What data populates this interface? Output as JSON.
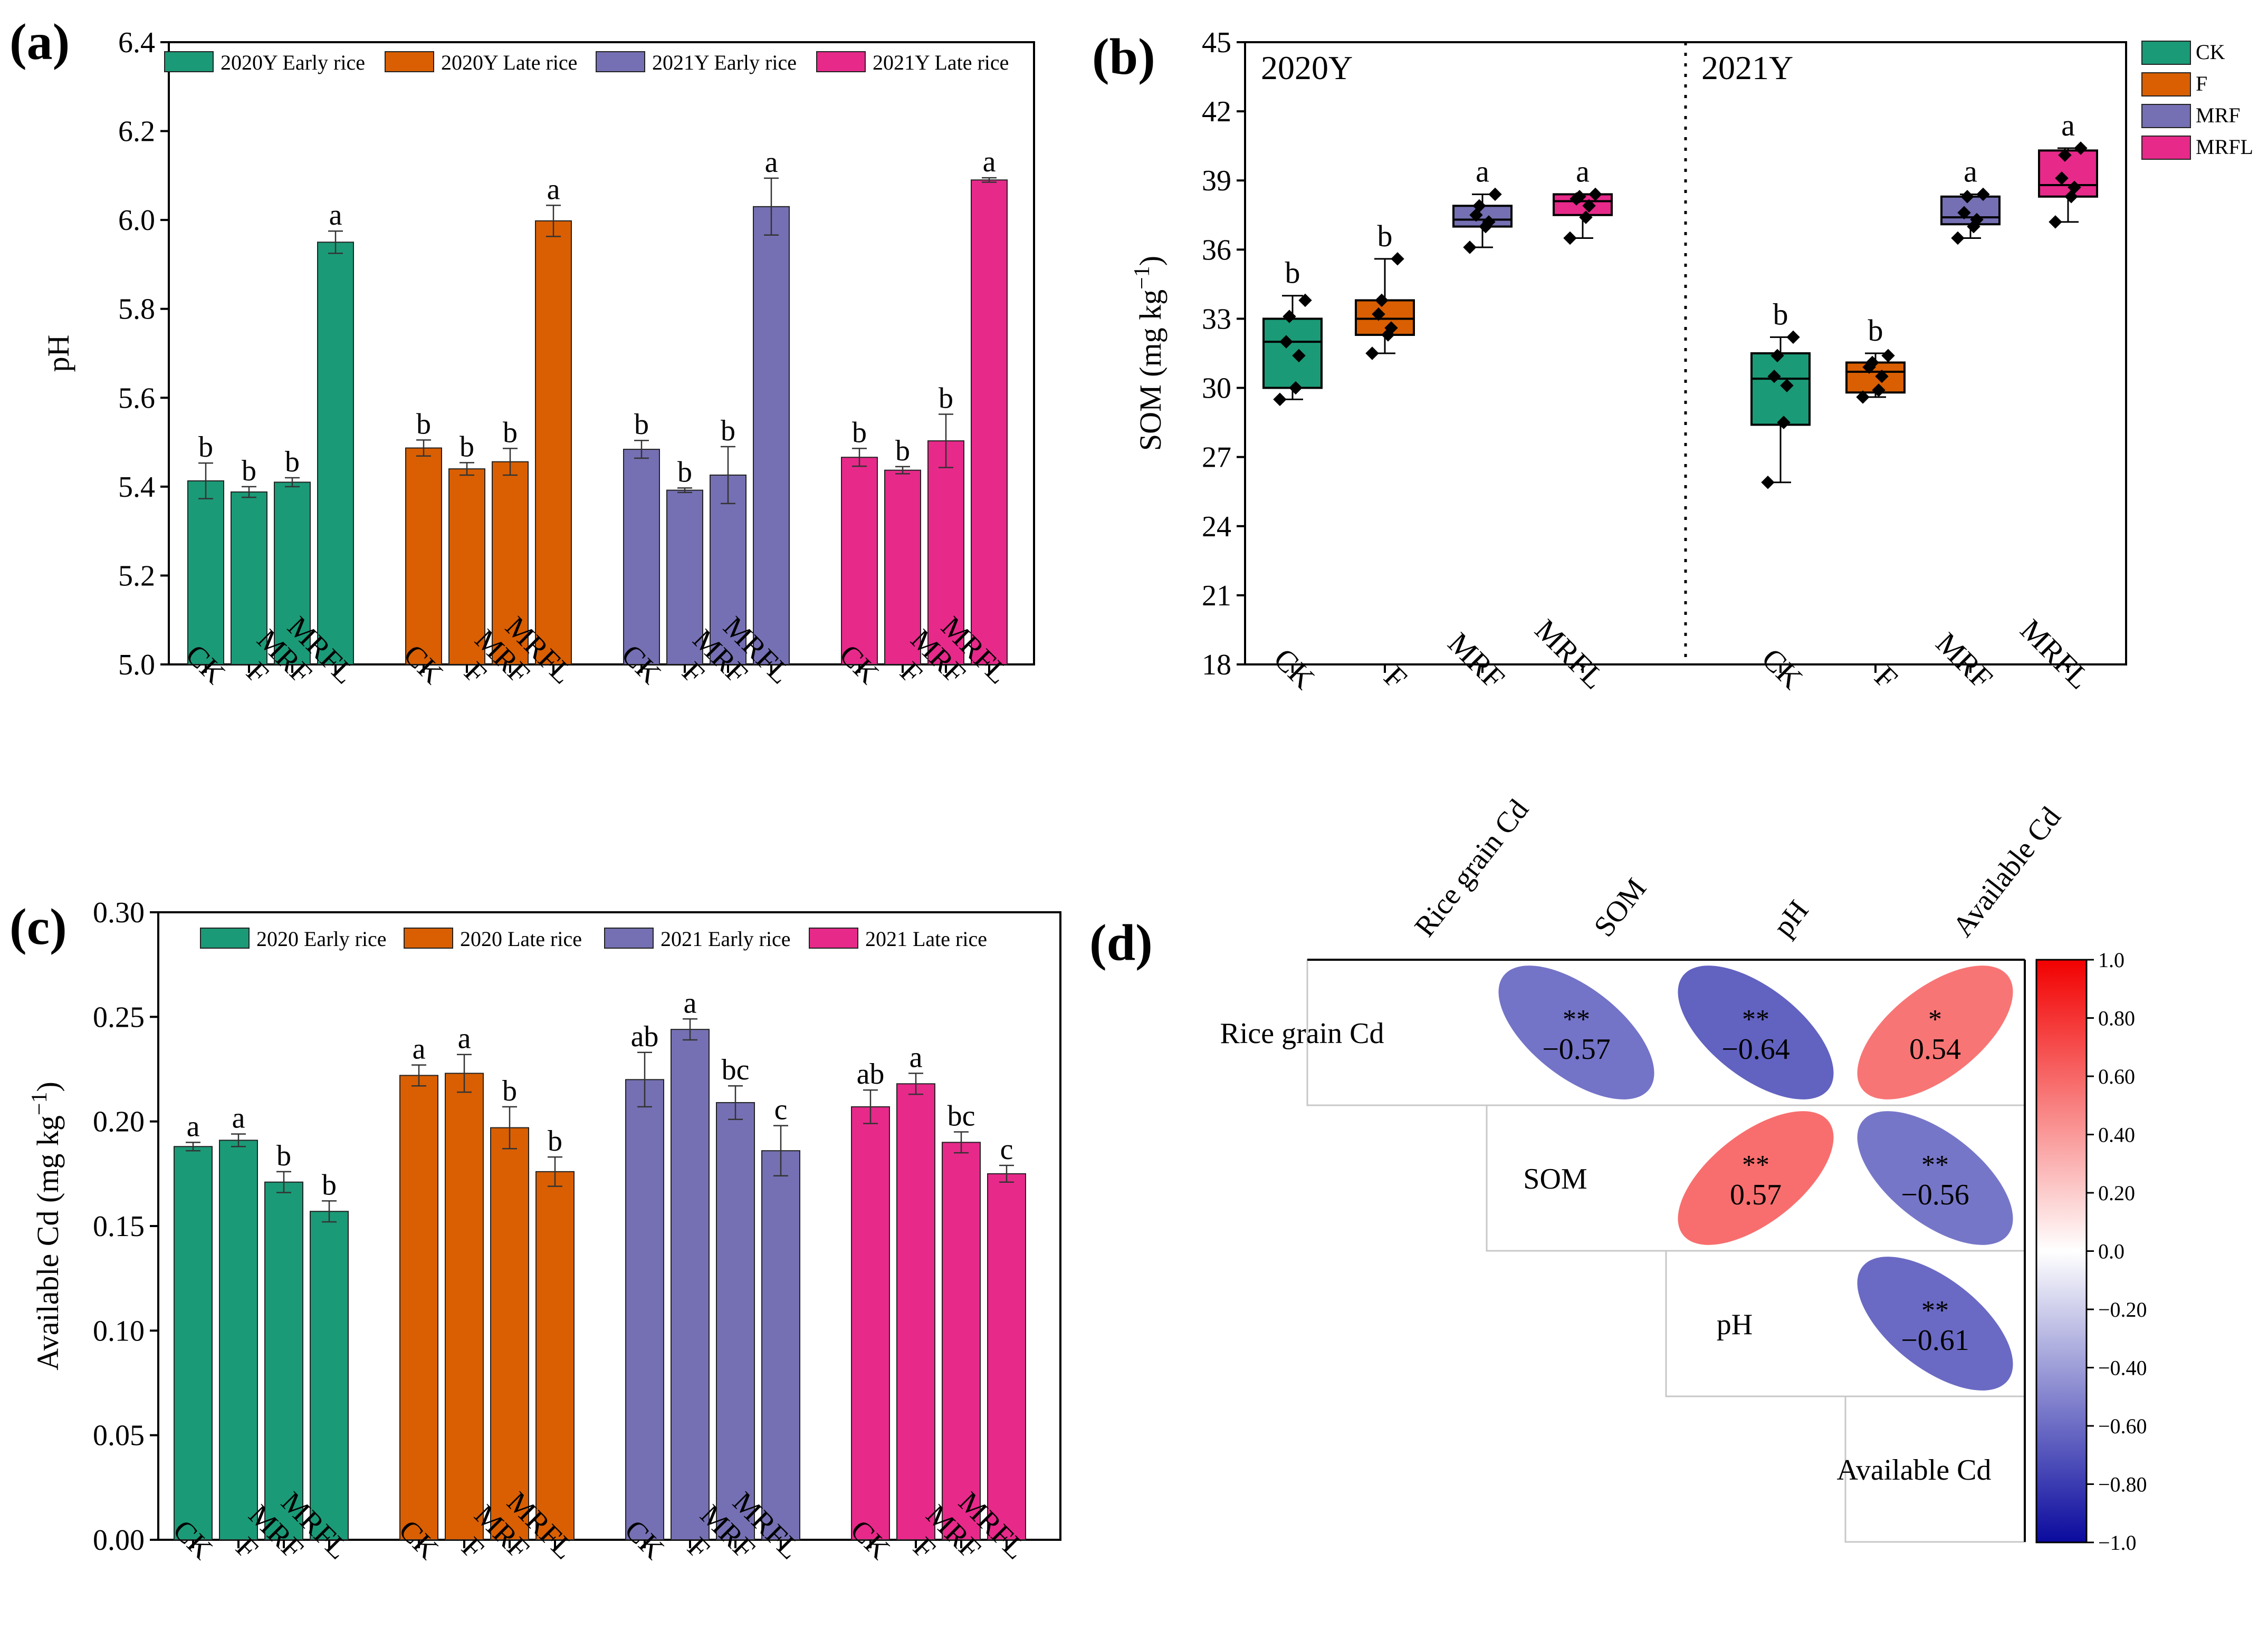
{
  "colors": {
    "CK": "#1b9a77",
    "F": "#d95f02",
    "MRF": "#7570b3",
    "MRFL": "#e7298a",
    "neg": "#0a0a9e",
    "pos": "#f20000"
  },
  "chart_data": [
    {
      "panel": "(a)",
      "type": "bar",
      "ylabel": "pH",
      "ylim": [
        5.0,
        6.4
      ],
      "yticks": [
        "5.0",
        "5.2",
        "5.4",
        "5.6",
        "5.8",
        "6.0",
        "6.2",
        "6.4"
      ],
      "categories": [
        "CK",
        "F",
        "MRF",
        "MRFL"
      ],
      "series": [
        {
          "name": "2020Y Early rice",
          "color_key": "CK",
          "values": [
            5.413,
            5.388,
            5.41,
            5.95
          ],
          "errors": [
            0.04,
            0.012,
            0.01,
            0.025
          ],
          "letters": [
            "b",
            "b",
            "b",
            "a"
          ]
        },
        {
          "name": "2020Y Late rice",
          "color_key": "F",
          "values": [
            5.487,
            5.44,
            5.456,
            5.998
          ],
          "errors": [
            0.018,
            0.014,
            0.03,
            0.035
          ],
          "letters": [
            "b",
            "b",
            "b",
            "a"
          ]
        },
        {
          "name": "2021Y Early rice",
          "color_key": "MRF",
          "values": [
            5.484,
            5.392,
            5.426,
            6.03
          ],
          "errors": [
            0.02,
            0.005,
            0.064,
            0.064
          ],
          "letters": [
            "b",
            "b",
            "b",
            "a"
          ]
        },
        {
          "name": "2021Y Late rice",
          "color_key": "MRFL",
          "values": [
            5.466,
            5.437,
            5.503,
            6.09
          ],
          "errors": [
            0.02,
            0.008,
            0.06,
            0.005
          ],
          "letters": [
            "b",
            "b",
            "b",
            "a"
          ]
        }
      ]
    },
    {
      "panel": "(b)",
      "type": "box",
      "ylabel": "SOM (mg kg",
      "ylabel_sup": "−1",
      "ylabel_tail": ")",
      "ylim": [
        18,
        45
      ],
      "yticks": [
        "18",
        "21",
        "24",
        "27",
        "30",
        "33",
        "36",
        "39",
        "42",
        "45"
      ],
      "periods": [
        "2020Y",
        "2021Y"
      ],
      "categories": [
        "CK",
        "F",
        "MRF",
        "MRFL"
      ],
      "legend": [
        "CK",
        "F",
        "MRF",
        "MRFL"
      ],
      "groups": [
        {
          "period": "2020Y",
          "treatment": "CK",
          "min": 29.5,
          "q1": 30.0,
          "median": 32.0,
          "q3": 33.0,
          "max": 34.0,
          "points": [
            29.5,
            30.0,
            31.4,
            32.0,
            33.1,
            33.8
          ],
          "letter": "b"
        },
        {
          "period": "2020Y",
          "treatment": "F",
          "min": 31.5,
          "q1": 32.3,
          "median": 33.0,
          "q3": 33.8,
          "max": 35.6,
          "points": [
            31.5,
            32.3,
            32.6,
            33.2,
            33.8,
            35.6
          ],
          "letter": "b"
        },
        {
          "period": "2020Y",
          "treatment": "MRF",
          "min": 36.1,
          "q1": 37.0,
          "median": 37.3,
          "q3": 37.9,
          "max": 38.4,
          "points": [
            36.1,
            37.0,
            37.2,
            37.5,
            37.9,
            38.4
          ],
          "letter": "a"
        },
        {
          "period": "2020Y",
          "treatment": "MRFL",
          "min": 36.5,
          "q1": 37.5,
          "median": 38.1,
          "q3": 38.4,
          "max": 38.4,
          "points": [
            36.5,
            37.4,
            37.9,
            38.2,
            38.3,
            38.4
          ],
          "letter": "a"
        },
        {
          "period": "2021Y",
          "treatment": "CK",
          "min": 25.9,
          "q1": 28.4,
          "median": 30.4,
          "q3": 31.5,
          "max": 32.2,
          "points": [
            25.9,
            28.5,
            30.1,
            30.5,
            31.4,
            32.2
          ],
          "letter": "b"
        },
        {
          "period": "2021Y",
          "treatment": "F",
          "min": 29.6,
          "q1": 29.8,
          "median": 30.7,
          "q3": 31.1,
          "max": 31.5,
          "points": [
            29.6,
            29.9,
            30.5,
            30.9,
            31.1,
            31.4
          ],
          "letter": "b"
        },
        {
          "period": "2021Y",
          "treatment": "MRF",
          "min": 36.5,
          "q1": 37.1,
          "median": 37.4,
          "q3": 38.3,
          "max": 38.4,
          "points": [
            36.5,
            37.0,
            37.3,
            37.6,
            38.3,
            38.4
          ],
          "letter": "a"
        },
        {
          "period": "2021Y",
          "treatment": "MRFL",
          "min": 37.2,
          "q1": 38.3,
          "median": 38.8,
          "q3": 40.3,
          "max": 40.4,
          "points": [
            37.2,
            38.3,
            38.7,
            39.1,
            40.1,
            40.4
          ],
          "letter": "a"
        }
      ]
    },
    {
      "panel": "(c)",
      "type": "bar",
      "ylabel": "Available Cd (mg kg",
      "ylabel_sup": "−1",
      "ylabel_tail": ")",
      "ylim": [
        0.0,
        0.3
      ],
      "yticks": [
        "0.00",
        "0.05",
        "0.10",
        "0.15",
        "0.20",
        "0.25",
        "0.30"
      ],
      "categories": [
        "CK",
        "F",
        "MRF",
        "MRFL"
      ],
      "series": [
        {
          "name": "2020 Early rice",
          "color_key": "CK",
          "values": [
            0.188,
            0.191,
            0.171,
            0.157
          ],
          "errors": [
            0.002,
            0.003,
            0.005,
            0.005
          ],
          "letters": [
            "a",
            "a",
            "b",
            "b"
          ]
        },
        {
          "name": "2020 Late rice",
          "color_key": "F",
          "values": [
            0.222,
            0.223,
            0.197,
            0.176
          ],
          "errors": [
            0.005,
            0.009,
            0.01,
            0.007
          ],
          "letters": [
            "a",
            "a",
            "b",
            "b"
          ]
        },
        {
          "name": "2021 Early rice",
          "color_key": "MRF",
          "values": [
            0.22,
            0.244,
            0.209,
            0.186
          ],
          "errors": [
            0.013,
            0.005,
            0.008,
            0.012
          ],
          "letters": [
            "ab",
            "a",
            "bc",
            "c"
          ]
        },
        {
          "name": "2021 Late rice",
          "color_key": "MRFL",
          "values": [
            0.207,
            0.218,
            0.19,
            0.175
          ],
          "errors": [
            0.008,
            0.005,
            0.005,
            0.004
          ],
          "letters": [
            "ab",
            "a",
            "bc",
            "c"
          ]
        }
      ]
    },
    {
      "panel": "(d)",
      "type": "heatmap",
      "variables": [
        "Rice grain Cd",
        "SOM",
        "pH",
        "Available Cd"
      ],
      "cells": [
        {
          "row": 0,
          "col": 1,
          "value": -0.57,
          "label": "−0.57",
          "sig": "**"
        },
        {
          "row": 0,
          "col": 2,
          "value": -0.64,
          "label": "−0.64",
          "sig": "**"
        },
        {
          "row": 0,
          "col": 3,
          "value": 0.54,
          "label": "0.54",
          "sig": "*"
        },
        {
          "row": 1,
          "col": 2,
          "value": 0.57,
          "label": "0.57",
          "sig": "**"
        },
        {
          "row": 1,
          "col": 3,
          "value": -0.56,
          "label": "−0.56",
          "sig": "**"
        },
        {
          "row": 2,
          "col": 3,
          "value": -0.61,
          "label": "−0.61",
          "sig": "**"
        }
      ],
      "colorbar_range": [
        -1.0,
        1.0
      ],
      "colorbar_ticks": [
        "1.0",
        "0.80",
        "0.60",
        "0.40",
        "0.20",
        "0.0",
        "−0.20",
        "−0.40",
        "−0.60",
        "−0.80",
        "−1.0"
      ]
    }
  ]
}
